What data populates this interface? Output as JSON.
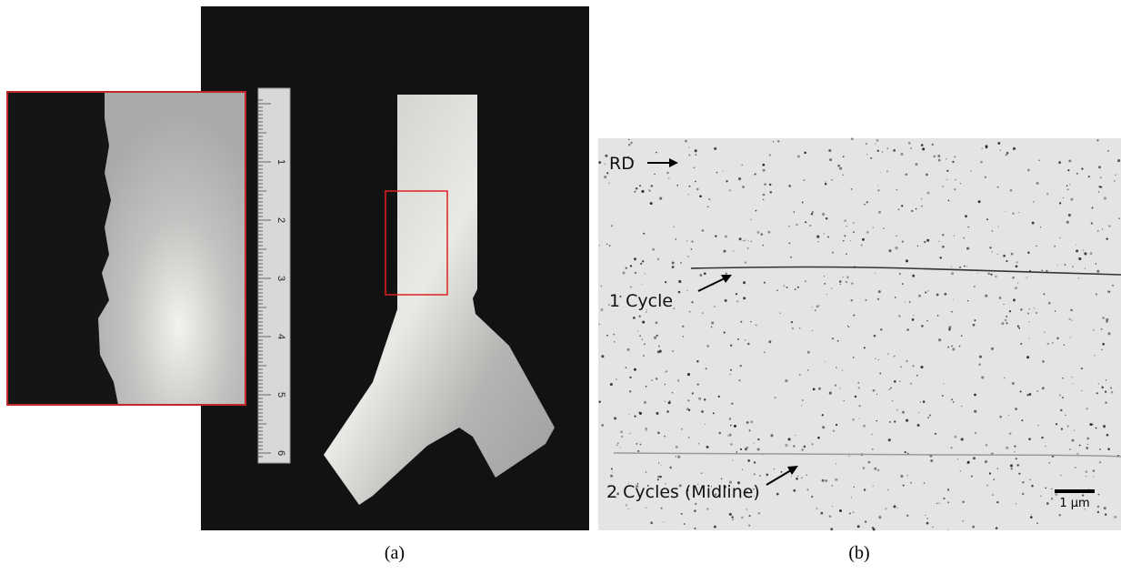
{
  "panels": [
    {
      "caption": "(a)",
      "ruler_labels": [
        "1",
        "2",
        "3",
        "4",
        "5",
        "6"
      ]
    },
    {
      "caption": "(b)",
      "annotations": [
        "RD",
        "1 Cycle",
        "2 Cycles (Midline)"
      ],
      "scale_bar": "1 µm"
    }
  ]
}
